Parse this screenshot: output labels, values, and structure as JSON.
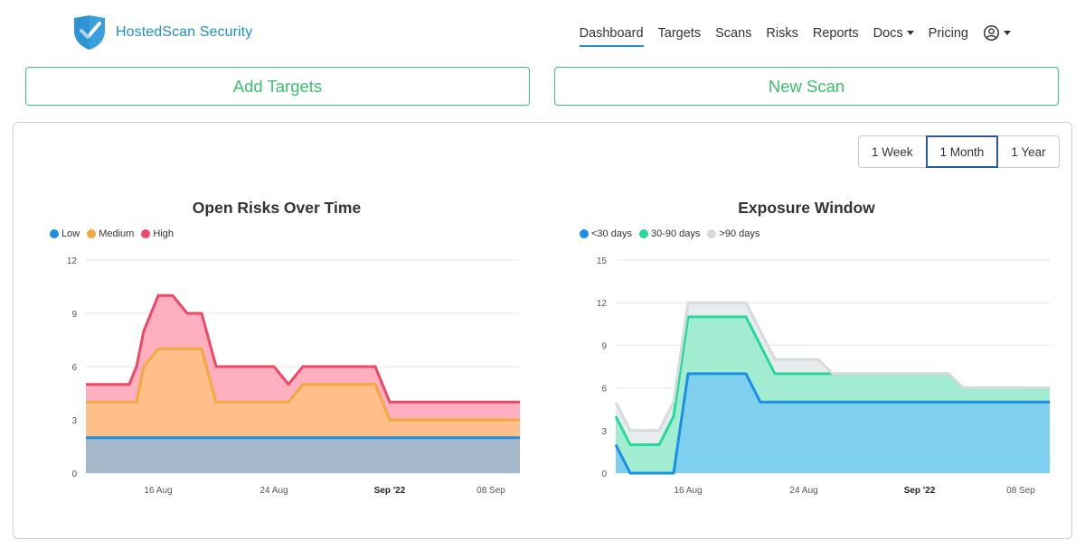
{
  "brand": {
    "name": "HostedScan Security"
  },
  "nav": {
    "items": [
      {
        "label": "Dashboard",
        "active": true
      },
      {
        "label": "Targets"
      },
      {
        "label": "Scans"
      },
      {
        "label": "Risks"
      },
      {
        "label": "Reports"
      },
      {
        "label": "Docs",
        "dropdown": true
      },
      {
        "label": "Pricing"
      }
    ],
    "user_icon": "user-circle-icon"
  },
  "actions": {
    "add_targets": "Add Targets",
    "new_scan": "New Scan"
  },
  "range": {
    "options": [
      "1 Week",
      "1 Month",
      "1 Year"
    ],
    "selected": "1 Month"
  },
  "chart_data": [
    {
      "type": "area",
      "title": "Open Risks Over Time",
      "stacked": true,
      "legend": "top-left",
      "grid": true,
      "ylim": [
        0,
        12
      ],
      "yticks": [
        0,
        3,
        6,
        9,
        12
      ],
      "xlim": [
        "2022-08-11",
        "2022-09-10"
      ],
      "xticks": [
        {
          "label": "16 Aug",
          "date": "2022-08-16"
        },
        {
          "label": "24 Aug",
          "date": "2022-08-24"
        },
        {
          "label": "Sep '22",
          "date": "2022-09-01",
          "bold": true
        },
        {
          "label": "08 Sep",
          "date": "2022-09-08"
        }
      ],
      "x": [
        "2022-08-11",
        "2022-08-14",
        "2022-08-14.5",
        "2022-08-15",
        "2022-08-16",
        "2022-08-17",
        "2022-08-18",
        "2022-08-19",
        "2022-08-20",
        "2022-08-24",
        "2022-08-25",
        "2022-08-26",
        "2022-08-27",
        "2022-08-31",
        "2022-09-01",
        "2022-09-10"
      ],
      "series": [
        {
          "name": "Low",
          "color": "#1a8fe3",
          "fill": "#a4b8c9",
          "values": [
            2,
            2,
            2,
            2,
            2,
            2,
            2,
            2,
            2,
            2,
            2,
            2,
            2,
            2,
            2,
            2
          ]
        },
        {
          "name": "Medium",
          "color": "#f5a742",
          "fill": "#ffbf8a",
          "values": [
            2,
            2,
            2,
            4,
            5,
            5,
            5,
            5,
            2,
            2,
            2,
            3,
            3,
            3,
            1,
            1
          ]
        },
        {
          "name": "High",
          "color": "#ef4866",
          "fill": "#ffb0c0",
          "values": [
            1,
            1,
            2,
            2,
            3,
            3,
            2,
            2,
            2,
            2,
            1,
            1,
            1,
            1,
            1,
            1
          ]
        }
      ]
    },
    {
      "type": "area",
      "title": "Exposure Window",
      "stacked": true,
      "legend": "top-left",
      "grid": true,
      "ylim": [
        0,
        15
      ],
      "yticks": [
        0,
        3,
        6,
        9,
        12,
        15
      ],
      "xlim": [
        "2022-08-11",
        "2022-09-10"
      ],
      "xticks": [
        {
          "label": "16 Aug",
          "date": "2022-08-16"
        },
        {
          "label": "24 Aug",
          "date": "2022-08-24"
        },
        {
          "label": "Sep '22",
          "date": "2022-09-01",
          "bold": true
        },
        {
          "label": "08 Sep",
          "date": "2022-09-08"
        }
      ],
      "x": [
        "2022-08-11",
        "2022-08-12",
        "2022-08-13",
        "2022-08-14",
        "2022-08-15",
        "2022-08-16",
        "2022-08-20",
        "2022-08-21",
        "2022-08-22",
        "2022-08-25",
        "2022-08-26",
        "2022-09-03",
        "2022-09-04",
        "2022-09-10"
      ],
      "series": [
        {
          "name": "<30 days",
          "color": "#1a8fe3",
          "fill": "#7fd0ee",
          "values": [
            2,
            0,
            0,
            0,
            0,
            7,
            7,
            5,
            5,
            5,
            5,
            5,
            5,
            5
          ]
        },
        {
          "name": "30-90 days",
          "color": "#26d99a",
          "fill": "#a2edd2",
          "values": [
            2,
            2,
            2,
            2,
            4,
            4,
            4,
            4,
            2,
            2,
            2,
            2,
            1,
            1
          ]
        },
        {
          "name": ">90 days",
          "color": "#d7dadd",
          "fill": "#e9ecef",
          "values": [
            1,
            1,
            1,
            1,
            1,
            1,
            1,
            1,
            1,
            1,
            0,
            0,
            0,
            0
          ]
        }
      ]
    }
  ]
}
